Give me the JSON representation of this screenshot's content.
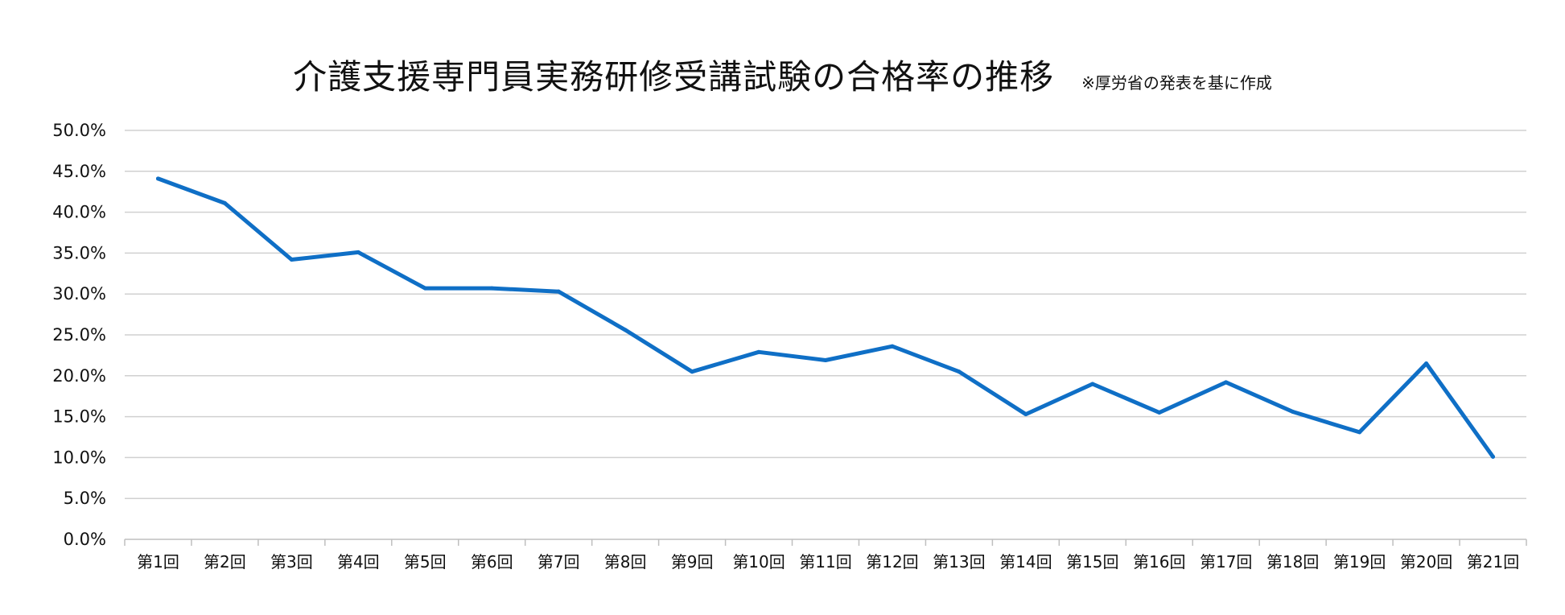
{
  "chart_data": {
    "type": "line",
    "title": "介護支援専門員実務研修受講試験の合格率の推移",
    "subtitle": "※厚労省の発表を基に作成",
    "categories": [
      "第1回",
      "第2回",
      "第3回",
      "第4回",
      "第5回",
      "第6回",
      "第7回",
      "第8回",
      "第9回",
      "第10回",
      "第11回",
      "第12回",
      "第13回",
      "第14回",
      "第15回",
      "第16回",
      "第17回",
      "第18回",
      "第19回",
      "第20回",
      "第21回"
    ],
    "series": [
      {
        "values": [
          44.1,
          41.1,
          34.2,
          35.1,
          30.7,
          30.7,
          30.3,
          25.6,
          20.5,
          22.9,
          21.9,
          23.6,
          20.5,
          15.3,
          19.0,
          15.5,
          19.2,
          15.6,
          13.1,
          21.5,
          10.1
        ]
      }
    ],
    "yticks": [
      "0.0%",
      "5.0%",
      "10.0%",
      "15.0%",
      "20.0%",
      "25.0%",
      "30.0%",
      "35.0%",
      "40.0%",
      "45.0%",
      "50.0%"
    ],
    "ylim": [
      0,
      50
    ],
    "xlabel": "",
    "ylabel": "",
    "grid": true,
    "legend": "none",
    "line_color": "#0F6FC6",
    "grid_color": "#D0D0D0"
  }
}
